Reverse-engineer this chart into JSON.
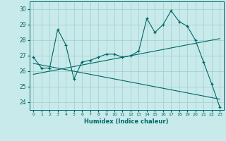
{
  "xlabel": "Humidex (Indice chaleur)",
  "ylabel": "",
  "bg_color": "#c8eaea",
  "line_color": "#006666",
  "grid_color": "#a0cccc",
  "x_values": [
    0,
    1,
    2,
    3,
    4,
    5,
    6,
    7,
    8,
    9,
    10,
    11,
    12,
    13,
    14,
    15,
    16,
    17,
    18,
    19,
    20,
    21,
    22,
    23
  ],
  "y_main": [
    26.9,
    26.2,
    26.2,
    28.7,
    27.7,
    25.5,
    26.6,
    26.7,
    26.9,
    27.1,
    27.1,
    26.9,
    27.0,
    27.3,
    29.4,
    28.5,
    29.0,
    29.9,
    29.2,
    28.9,
    28.0,
    26.6,
    25.2,
    23.7
  ],
  "y_trend_up": [
    25.8,
    25.9,
    26.0,
    26.1,
    26.2,
    26.3,
    26.4,
    26.5,
    26.6,
    26.7,
    26.8,
    26.9,
    27.0,
    27.1,
    27.2,
    27.3,
    27.4,
    27.5,
    27.6,
    27.7,
    27.8,
    27.9,
    28.0,
    28.1
  ],
  "y_trend_down": [
    26.5,
    26.4,
    26.3,
    26.2,
    26.1,
    26.0,
    25.9,
    25.8,
    25.7,
    25.6,
    25.5,
    25.4,
    25.3,
    25.2,
    25.1,
    25.0,
    24.9,
    24.8,
    24.7,
    24.6,
    24.5,
    24.4,
    24.3,
    24.2
  ],
  "ylim": [
    23.5,
    30.5
  ],
  "xlim": [
    -0.5,
    23.5
  ],
  "yticks": [
    24,
    25,
    26,
    27,
    28,
    29,
    30
  ],
  "xticks": [
    0,
    1,
    2,
    3,
    4,
    5,
    6,
    7,
    8,
    9,
    10,
    11,
    12,
    13,
    14,
    15,
    16,
    17,
    18,
    19,
    20,
    21,
    22,
    23
  ]
}
